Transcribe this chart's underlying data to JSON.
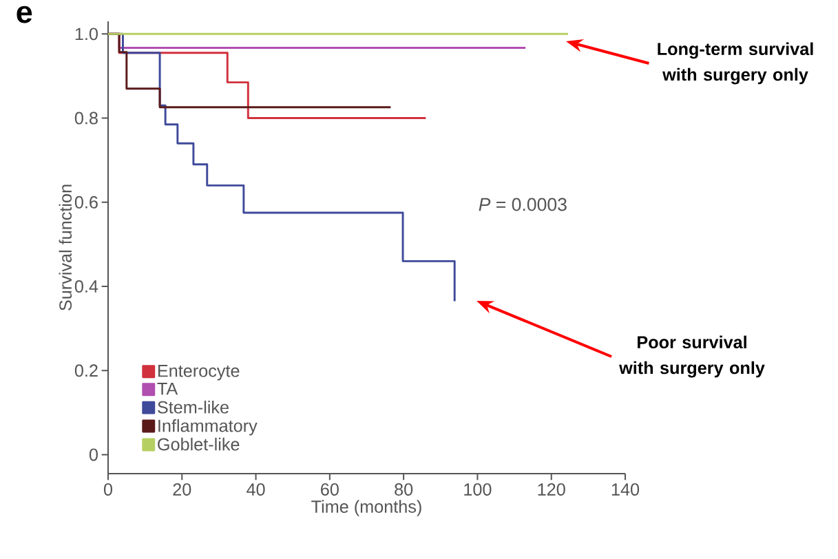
{
  "chart_data": {
    "type": "step",
    "xlabel": "Time (months)",
    "ylabel": "Survival function",
    "xlim": [
      0,
      140
    ],
    "ylim": [
      -0.045,
      1.03
    ],
    "xticks": [
      0,
      20,
      40,
      60,
      80,
      100,
      120,
      140
    ],
    "yticks": [
      0,
      0.2,
      0.4,
      0.6,
      0.8,
      {
        "value": 1,
        "label": "1.0"
      }
    ],
    "legend": "bottom left",
    "marker": "none",
    "line_style": "solid",
    "grid": false,
    "series": [
      {
        "name": "Enterocyte",
        "color": "#d0313d",
        "x": [
          0,
          3,
          32.3,
          37.9,
          86
        ],
        "values": [
          1,
          0.955,
          0.885,
          0.8,
          0.8
        ]
      },
      {
        "name": "TA",
        "color": "#b04fb0",
        "x": [
          0,
          3,
          113
        ],
        "values": [
          1,
          0.967,
          0.967
        ]
      },
      {
        "name": "Stem-like",
        "color": "#3f4a9a",
        "x": [
          0,
          4,
          14,
          15.5,
          18.8,
          23.1,
          26.8,
          36.7,
          79.8,
          93.8
        ],
        "values": [
          1,
          0.955,
          0.83,
          0.785,
          0.74,
          0.69,
          0.64,
          0.575,
          0.46,
          0.365
        ]
      },
      {
        "name": "Inflammatory",
        "color": "#5a1a1a",
        "x": [
          0,
          3,
          5,
          14,
          76.5
        ],
        "values": [
          1,
          0.957,
          0.87,
          0.826,
          0.826
        ]
      },
      {
        "name": "Goblet-like",
        "color": "#b6cf62",
        "x": [
          0,
          124.5
        ],
        "values": [
          1,
          1
        ]
      }
    ],
    "annotations": [
      "e",
      "*P* = 0.0003",
      "Long-term survival with surgery only",
      "Poor survival with surgery only"
    ]
  }
}
